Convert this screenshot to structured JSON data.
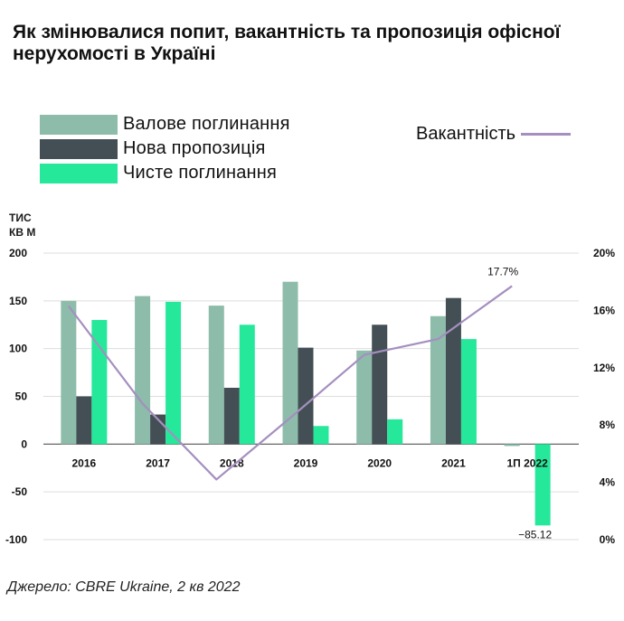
{
  "title": "Як змінювалися попит, вакантність та пропозиція офісної нерухомості в Україні",
  "source": "Джерело: CBRE Ukraine, 2 кв 2022",
  "chart_data": {
    "type": "bar",
    "title": "Як змінювалися попит, вакантність та пропозиція офісної нерухомості в Україні",
    "ylabel": "тис кв м",
    "y2label": "",
    "categories": [
      "2016",
      "2017",
      "2018",
      "2019",
      "2020",
      "2021",
      "1П 2022"
    ],
    "ylim": [
      -100,
      200
    ],
    "yticks": [
      "-100",
      "-50",
      "0",
      "50",
      "100",
      "150",
      "200"
    ],
    "y2lim": [
      0,
      20
    ],
    "y2ticks": [
      "0%",
      "4%",
      "8%",
      "12%",
      "16%",
      "20%"
    ],
    "grid": true,
    "series": [
      {
        "name": "Валове поглинання",
        "kind": "bar",
        "color": "#8dbcaa",
        "values": [
          150,
          155,
          145,
          170,
          98,
          134,
          -2
        ]
      },
      {
        "name": "Нова пропозиція",
        "kind": "bar",
        "color": "#434f54",
        "values": [
          50,
          31,
          59,
          101,
          125,
          153,
          0
        ]
      },
      {
        "name": "Чисте поглинання",
        "kind": "bar",
        "color": "#26e89a",
        "values": [
          130,
          149,
          125,
          19,
          26,
          110,
          -85.12
        ]
      },
      {
        "name": "Вакантність",
        "kind": "line",
        "axis": "right",
        "color": "#a58fbf",
        "values": [
          16.3,
          9.5,
          4.2,
          8.5,
          12.9,
          14.0,
          17.7
        ]
      }
    ],
    "annotations": [
      {
        "category": "1П 2022",
        "series": "Вакантність",
        "text": "17.7%"
      },
      {
        "category": "1П 2022",
        "series": "Чисте поглинання",
        "text": "−85.12"
      }
    ]
  }
}
